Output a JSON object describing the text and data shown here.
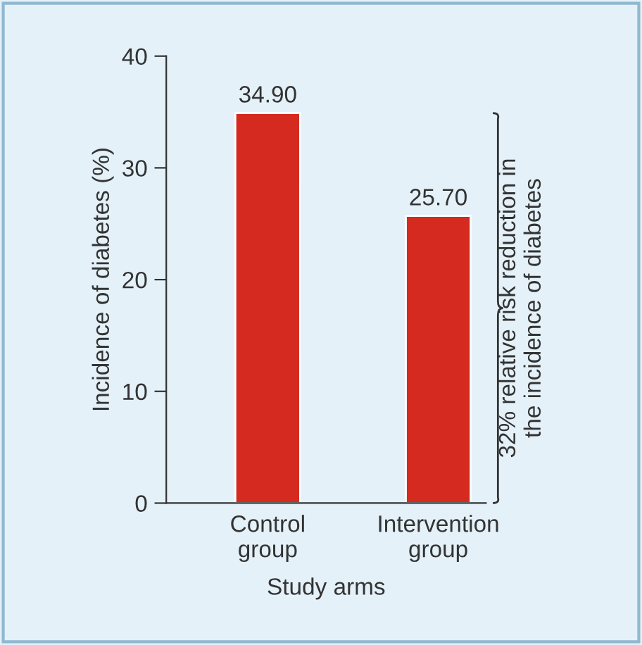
{
  "chart_data": {
    "type": "bar",
    "xlabel": "Study arms",
    "ylabel": "Incidence of diabetes (%)",
    "categories": [
      "Control\ngroup",
      "Intervention\ngroup"
    ],
    "values": [
      34.9,
      25.7
    ],
    "color": "#d42a1f",
    "value_labels": [
      "34.90",
      "25.70"
    ],
    "ylim": [
      0,
      40
    ],
    "yticks": [
      0,
      10,
      20,
      30,
      40
    ],
    "grid": false,
    "legend": false,
    "annotations": [
      "32% relative risk reduction in\nthe incidence of diabetes"
    ]
  }
}
